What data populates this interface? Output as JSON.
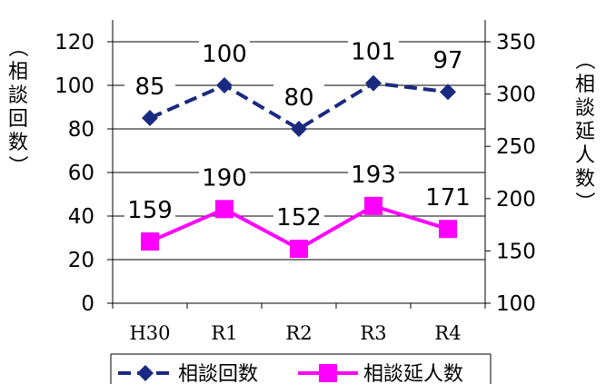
{
  "chart_data": {
    "type": "line",
    "categories": [
      "H30",
      "R1",
      "R2",
      "R3",
      "R4"
    ],
    "series": [
      {
        "name": "相談回数",
        "values": [
          85,
          100,
          80,
          101,
          97
        ],
        "axis": "left",
        "color": "#1a2a80",
        "marker": "diamond",
        "dashed": true
      },
      {
        "name": "相談延人数",
        "values": [
          159,
          190,
          152,
          193,
          171
        ],
        "axis": "right",
        "color": "#ff00ff",
        "marker": "square",
        "dashed": false
      }
    ],
    "y_left": {
      "label": "（相談回数）",
      "ylim": [
        0,
        120
      ],
      "ticks": [
        "0",
        "20",
        "40",
        "60",
        "80",
        "100",
        "120"
      ]
    },
    "y_right": {
      "label": "（相談延人数）",
      "ylim": [
        100,
        350
      ],
      "ticks": [
        "100",
        "150",
        "200",
        "250",
        "300",
        "350"
      ]
    },
    "grid": true,
    "legend": "bottom"
  }
}
